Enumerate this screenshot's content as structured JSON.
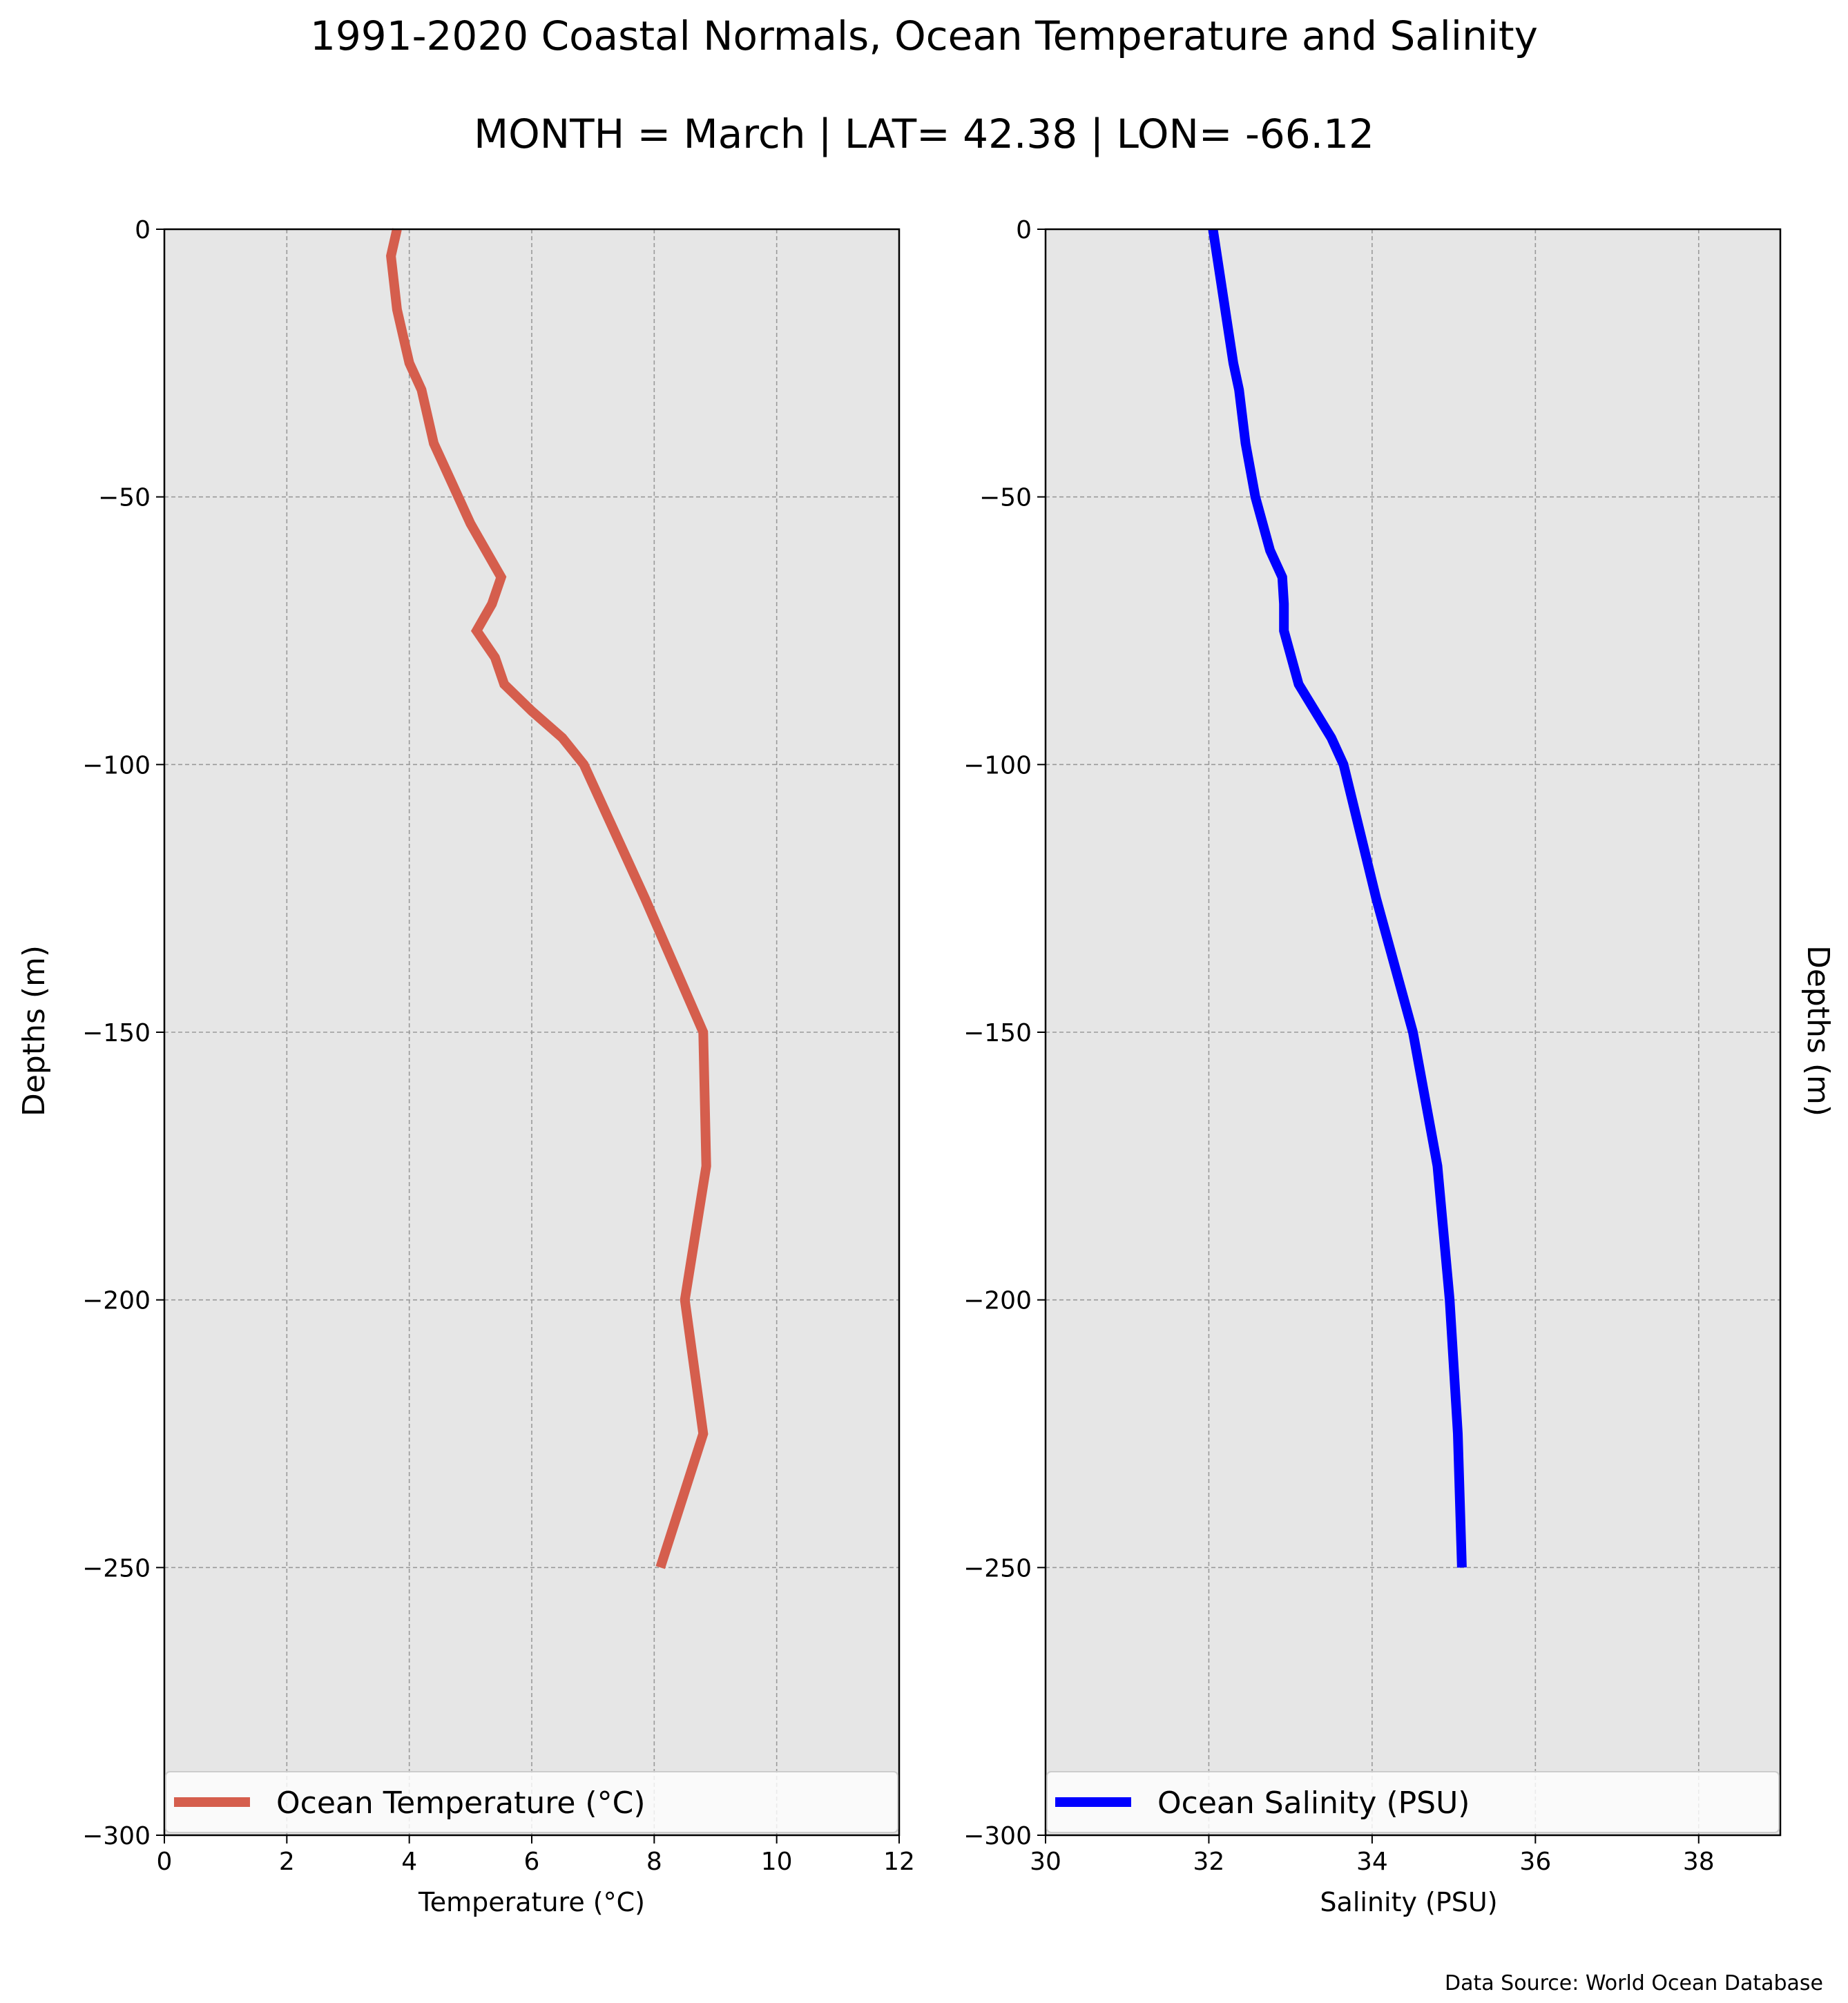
{
  "header": {
    "title": "1991-2020 Coastal Normals, Ocean Temperature and Salinity",
    "subtitle": "MONTH = March | LAT= 42.38 | LON= -66.12"
  },
  "footer": {
    "source": "Data Source: World Ocean Database"
  },
  "colors": {
    "temperature": "#d55e4d",
    "salinity": "#0000ff",
    "plot_bg": "#e6e6e6",
    "grid": "#9a9a9a"
  },
  "chart_data": [
    {
      "type": "line",
      "xlabel": "Temperature ($^\\circ$C)",
      "xlabel_display": "Temperature (°C)",
      "ylabel": "Depths (m)",
      "xlim": [
        0,
        12
      ],
      "ylim": [
        -300,
        0
      ],
      "xticks": [
        0,
        2,
        4,
        6,
        8,
        10,
        12
      ],
      "yticks": [
        0,
        -50,
        -100,
        -150,
        -200,
        -250,
        -300
      ],
      "ytick_labels": [
        "0",
        "−50",
        "−100",
        "−150",
        "−200",
        "−250",
        "−300"
      ],
      "grid": true,
      "legend_position": "lower-center",
      "series": [
        {
          "name": "Ocean Temperature ($^\\circ$C)",
          "name_display": "Ocean Temperature (°C)",
          "color": "#d55e4d",
          "depth": [
            0,
            -5,
            -10,
            -15,
            -20,
            -25,
            -30,
            -35,
            -40,
            -45,
            -50,
            -55,
            -60,
            -65,
            -70,
            -75,
            -80,
            -85,
            -90,
            -95,
            -100,
            -125,
            -150,
            -175,
            -200,
            -225,
            -250
          ],
          "values": [
            3.8,
            3.7,
            3.75,
            3.8,
            3.9,
            4.0,
            4.2,
            4.3,
            4.4,
            4.6,
            4.8,
            5.0,
            5.25,
            5.5,
            5.35,
            5.1,
            5.4,
            5.55,
            6.0,
            6.5,
            6.85,
            7.85,
            8.8,
            8.85,
            8.5,
            8.8,
            8.1
          ]
        }
      ]
    },
    {
      "type": "line",
      "xlabel": "Salinity (PSU)",
      "ylabel": "Depths (m)",
      "xlim": [
        30,
        39
      ],
      "ylim": [
        -300,
        0
      ],
      "xticks": [
        30,
        32,
        34,
        36,
        38
      ],
      "yticks": [
        0,
        -50,
        -100,
        -150,
        -200,
        -250,
        -300
      ],
      "ytick_labels": [
        "0",
        "−50",
        "−100",
        "−150",
        "−200",
        "−250",
        "−300"
      ],
      "grid": true,
      "legend_position": "lower-center",
      "series": [
        {
          "name": "Ocean Salinity (PSU)",
          "color": "#0000ff",
          "depth": [
            0,
            -10,
            -20,
            -25,
            -30,
            -40,
            -50,
            -60,
            -65,
            -70,
            -75,
            -85,
            -95,
            -100,
            -125,
            -150,
            -175,
            -200,
            -225,
            -250
          ],
          "values": [
            32.05,
            32.15,
            32.25,
            32.3,
            32.37,
            32.45,
            32.57,
            32.75,
            32.9,
            32.92,
            32.92,
            33.1,
            33.5,
            33.65,
            34.05,
            34.5,
            34.8,
            34.95,
            35.05,
            35.1
          ]
        }
      ]
    }
  ]
}
